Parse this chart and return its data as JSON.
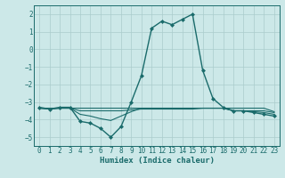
{
  "xlabel": "Humidex (Indice chaleur)",
  "background_color": "#cce8e8",
  "grid_color": "#aacccc",
  "line_color": "#1a6b6b",
  "marker_color": "#1a6b6b",
  "xlim": [
    -0.5,
    23.5
  ],
  "ylim": [
    -5.5,
    2.5
  ],
  "yticks": [
    -5,
    -4,
    -3,
    -2,
    -1,
    0,
    1,
    2
  ],
  "xticks": [
    0,
    1,
    2,
    3,
    4,
    5,
    6,
    7,
    8,
    9,
    10,
    11,
    12,
    13,
    14,
    15,
    16,
    17,
    18,
    19,
    20,
    21,
    22,
    23
  ],
  "series": [
    {
      "x": [
        0,
        1,
        2,
        3,
        4,
        5,
        6,
        7,
        8,
        9,
        10,
        11,
        12,
        13,
        14,
        15,
        16,
        17,
        18,
        19,
        20,
        21,
        22,
        23
      ],
      "y": [
        -3.3,
        -3.4,
        -3.3,
        -3.3,
        -4.1,
        -4.2,
        -4.5,
        -5.0,
        -4.4,
        -3.0,
        -1.5,
        1.2,
        1.6,
        1.4,
        1.7,
        2.0,
        -1.2,
        -2.8,
        -3.3,
        -3.5,
        -3.5,
        -3.6,
        -3.7,
        -3.8
      ],
      "has_markers": true,
      "lw": 1.0
    },
    {
      "x": [
        0,
        1,
        2,
        3,
        4,
        5,
        6,
        7,
        8,
        9,
        10,
        11,
        12,
        13,
        14,
        15,
        16,
        17,
        18,
        19,
        20,
        21,
        22,
        23
      ],
      "y": [
        -3.35,
        -3.35,
        -3.35,
        -3.35,
        -3.35,
        -3.35,
        -3.35,
        -3.35,
        -3.35,
        -3.35,
        -3.35,
        -3.35,
        -3.35,
        -3.35,
        -3.35,
        -3.35,
        -3.35,
        -3.35,
        -3.35,
        -3.35,
        -3.35,
        -3.35,
        -3.35,
        -3.55
      ],
      "has_markers": false,
      "lw": 0.8
    },
    {
      "x": [
        0,
        1,
        2,
        3,
        4,
        5,
        6,
        7,
        8,
        9,
        10,
        11,
        12,
        13,
        14,
        15,
        16,
        17,
        18,
        19,
        20,
        21,
        22,
        23
      ],
      "y": [
        -3.35,
        -3.4,
        -3.35,
        -3.35,
        -3.5,
        -3.5,
        -3.5,
        -3.5,
        -3.5,
        -3.45,
        -3.4,
        -3.4,
        -3.4,
        -3.4,
        -3.4,
        -3.4,
        -3.35,
        -3.35,
        -3.35,
        -3.5,
        -3.5,
        -3.5,
        -3.5,
        -3.6
      ],
      "has_markers": false,
      "lw": 0.8
    },
    {
      "x": [
        0,
        1,
        2,
        3,
        4,
        5,
        6,
        7,
        8,
        9,
        10,
        11,
        12,
        13,
        14,
        15,
        16,
        17,
        18,
        19,
        20,
        21,
        22,
        23
      ],
      "y": [
        -3.35,
        -3.4,
        -3.35,
        -3.35,
        -3.7,
        -3.8,
        -3.95,
        -4.05,
        -3.8,
        -3.55,
        -3.35,
        -3.35,
        -3.35,
        -3.35,
        -3.35,
        -3.35,
        -3.35,
        -3.35,
        -3.35,
        -3.5,
        -3.5,
        -3.55,
        -3.6,
        -3.7
      ],
      "has_markers": false,
      "lw": 0.8
    }
  ]
}
